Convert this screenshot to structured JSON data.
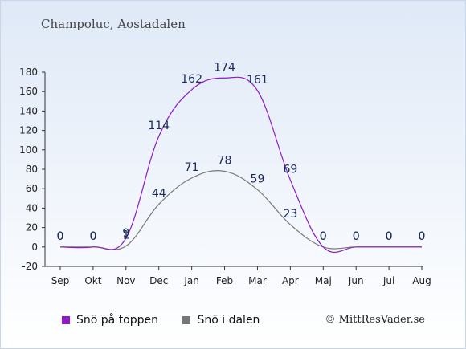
{
  "title": "Champoluc, Aostadalen",
  "credit": "© MittResVader.se",
  "colors": {
    "top": "#8c1cc6",
    "valley": "#777777",
    "background": "#dfe9f7"
  },
  "chart_data": {
    "type": "line",
    "categories": [
      "Sep",
      "Okt",
      "Nov",
      "Dec",
      "Jan",
      "Feb",
      "Mar",
      "Apr",
      "Maj",
      "Jun",
      "Jul",
      "Aug"
    ],
    "series": [
      {
        "name": "Snö på toppen",
        "values": [
          0,
          0,
          9,
          114,
          162,
          174,
          161,
          69,
          0,
          0,
          0,
          0
        ]
      },
      {
        "name": "Snö i dalen",
        "values": [
          0,
          0,
          1,
          44,
          71,
          78,
          59,
          23,
          0,
          0,
          0,
          0
        ]
      }
    ],
    "ylim": [
      -20,
      180
    ],
    "yticks": [
      -20,
      0,
      20,
      40,
      60,
      80,
      100,
      120,
      140,
      160,
      180
    ],
    "grid": false,
    "legend": "bottom-left"
  }
}
